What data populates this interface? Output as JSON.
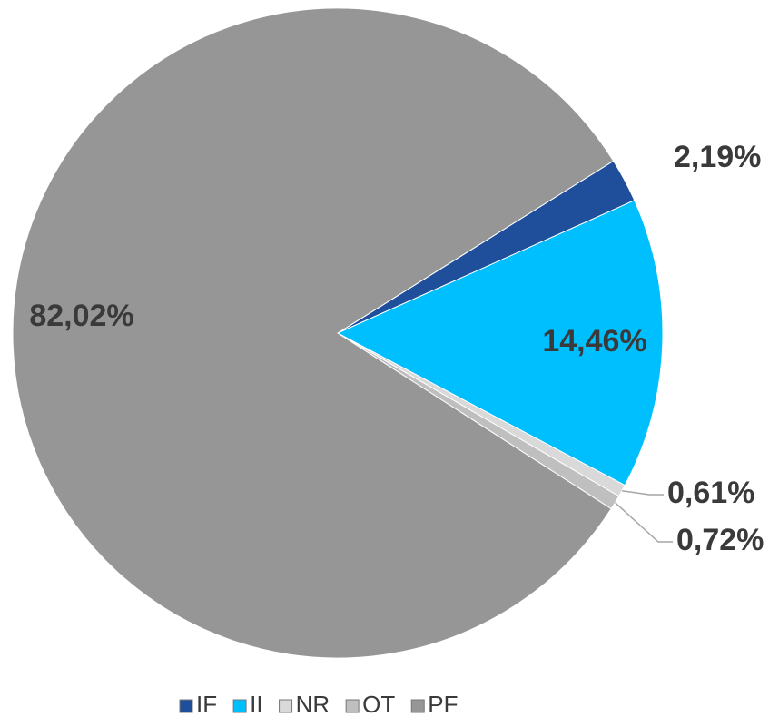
{
  "chart_data": {
    "type": "pie",
    "categories": [
      "IF",
      "II",
      "NR",
      "OT",
      "PF"
    ],
    "values": [
      2.19,
      14.46,
      0.61,
      0.72,
      82.02
    ],
    "value_labels": [
      "2,19%",
      "14,46%",
      "0,61%",
      "0,72%",
      "82,02%"
    ],
    "colors": [
      "#1f4e9a",
      "#00bfff",
      "#d9d9d9",
      "#bfbfbf",
      "#969696"
    ],
    "legend": "bottom"
  }
}
